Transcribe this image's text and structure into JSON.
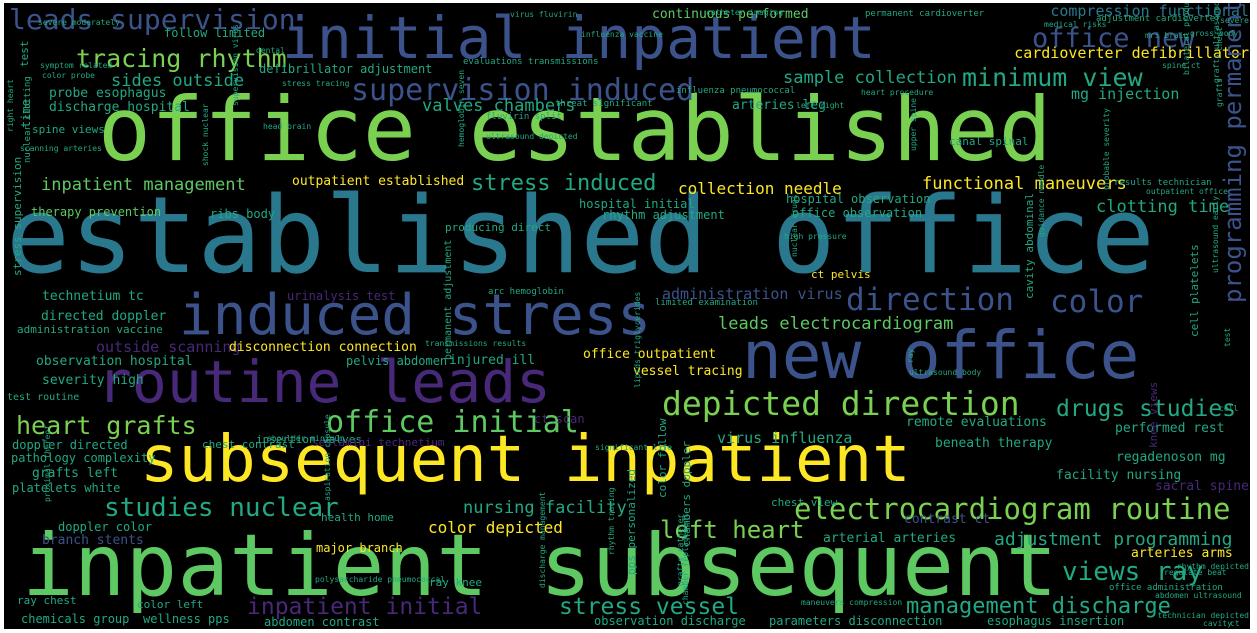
{
  "palette": {
    "background": "#000000",
    "yellow": "#fde725",
    "green": "#7ad151",
    "teal": "#22a884",
    "blue": "#3b528b",
    "purple": "#482878",
    "cyan": "#2a788e",
    "light_green": "#5ec962"
  },
  "words": [
    {
      "text": "office established",
      "color": "green"
    },
    {
      "text": "established office",
      "color": "cyan"
    },
    {
      "text": "inpatient subsequent",
      "color": "light_green"
    },
    {
      "text": "subsequent inpatient",
      "color": "yellow"
    },
    {
      "text": "initial inpatient",
      "color": "blue"
    },
    {
      "text": "new office",
      "color": "blue"
    },
    {
      "text": "routine leads",
      "color": "purple"
    },
    {
      "text": "induced stress",
      "color": "blue"
    },
    {
      "text": "supervision induced",
      "color": "blue"
    },
    {
      "text": "depicted direction",
      "color": "green"
    },
    {
      "text": "electrocardiogram routine",
      "color": "green"
    },
    {
      "text": "leads supervision",
      "color": "blue"
    },
    {
      "text": "direction",
      "color": "blue"
    },
    {
      "text": "color",
      "color": "blue"
    },
    {
      "text": "office initial",
      "color": "light_green"
    },
    {
      "text": "heart grafts",
      "color": "green"
    },
    {
      "text": "office new",
      "color": "blue"
    },
    {
      "text": "tracing rhythm",
      "color": "green"
    },
    {
      "text": "minimum view",
      "color": "teal"
    },
    {
      "text": "drugs studies",
      "color": "teal"
    },
    {
      "text": "views ray",
      "color": "teal"
    },
    {
      "text": "stress induced",
      "color": "teal"
    },
    {
      "text": "studies nuclear",
      "color": "teal"
    },
    {
      "text": "left heart",
      "color": "green"
    },
    {
      "text": "stress vessel",
      "color": "teal"
    },
    {
      "text": "management discharge",
      "color": "teal"
    },
    {
      "text": "inpatient initial",
      "color": "purple"
    },
    {
      "text": "adjustment programming",
      "color": "teal"
    },
    {
      "text": "leads electrocardiogram",
      "color": "light_green"
    },
    {
      "text": "inpatient management",
      "color": "light_green"
    },
    {
      "text": "functional maneuvers",
      "color": "yellow"
    },
    {
      "text": "collection needle",
      "color": "yellow"
    },
    {
      "text": "clotting time",
      "color": "teal"
    },
    {
      "text": "sample collection",
      "color": "teal"
    },
    {
      "text": "valves chambers",
      "color": "teal"
    },
    {
      "text": "sides outside",
      "color": "teal"
    },
    {
      "text": "nursing facility",
      "color": "teal"
    },
    {
      "text": "color depicted",
      "color": "yellow"
    },
    {
      "text": "virus influenza",
      "color": "teal"
    },
    {
      "text": "compression functional",
      "color": "cyan"
    },
    {
      "text": "cardioverter defibrillator",
      "color": "yellow"
    },
    {
      "text": "mg injection",
      "color": "teal"
    },
    {
      "text": "continuous performed",
      "color": "light_green"
    },
    {
      "text": "defibrillator adjustment",
      "color": "teal"
    },
    {
      "text": "follow limited",
      "color": "teal"
    },
    {
      "text": "probe esophagus",
      "color": "teal"
    },
    {
      "text": "discharge hospital",
      "color": "teal"
    },
    {
      "text": "arteries leg",
      "color": "teal"
    },
    {
      "text": "outside scanning",
      "color": "purple"
    },
    {
      "text": "administration virus",
      "color": "blue"
    },
    {
      "text": "outpatient established",
      "color": "yellow"
    },
    {
      "text": "technetium tc",
      "color": "teal"
    },
    {
      "text": "directed doppler",
      "color": "teal"
    },
    {
      "text": "administration vaccine",
      "color": "teal"
    },
    {
      "text": "disconnection connection",
      "color": "yellow"
    },
    {
      "text": "observation hospital",
      "color": "teal"
    },
    {
      "text": "severity high",
      "color": "teal"
    },
    {
      "text": "office outpatient",
      "color": "yellow"
    },
    {
      "text": "vessel tracing",
      "color": "yellow"
    },
    {
      "text": "injured ill",
      "color": "teal"
    },
    {
      "text": "pelvis abdomen",
      "color": "teal"
    },
    {
      "text": "remote evaluations",
      "color": "teal"
    },
    {
      "text": "performed rest",
      "color": "teal"
    },
    {
      "text": "beneath therapy",
      "color": "teal"
    },
    {
      "text": "regadenoson mg",
      "color": "teal"
    },
    {
      "text": "facility nursing",
      "color": "teal"
    },
    {
      "text": "sacral spine",
      "color": "purple"
    },
    {
      "text": "arteries arms",
      "color": "yellow"
    },
    {
      "text": "arterial arteries",
      "color": "teal"
    },
    {
      "text": "contrast ct",
      "color": "blue"
    },
    {
      "text": "chest view",
      "color": "teal"
    },
    {
      "text": "major branch",
      "color": "yellow"
    },
    {
      "text": "health home",
      "color": "teal"
    },
    {
      "text": "doppler color",
      "color": "teal"
    },
    {
      "text": "branch stents",
      "color": "blue"
    },
    {
      "text": "platelets white",
      "color": "teal"
    },
    {
      "text": "grafts left",
      "color": "teal"
    },
    {
      "text": "pathology complexity",
      "color": "teal"
    },
    {
      "text": "doppler directed",
      "color": "teal"
    },
    {
      "text": "test routine",
      "color": "teal"
    },
    {
      "text": "ray chest",
      "color": "teal"
    },
    {
      "text": "chemicals group",
      "color": "teal"
    },
    {
      "text": "wellness pps",
      "color": "teal"
    },
    {
      "text": "abdomen contrast",
      "color": "teal"
    },
    {
      "text": "observation discharge",
      "color": "teal"
    },
    {
      "text": "parameters disconnection",
      "color": "teal"
    },
    {
      "text": "esophagus insertion",
      "color": "teal"
    },
    {
      "text": "color left",
      "color": "teal"
    },
    {
      "text": "ray knee",
      "color": "teal"
    },
    {
      "text": "therapy prevention",
      "color": "light_green"
    },
    {
      "text": "ribs body",
      "color": "teal"
    },
    {
      "text": "hospital initial",
      "color": "teal"
    },
    {
      "text": "rhythm adjustment",
      "color": "teal"
    },
    {
      "text": "hospital observation",
      "color": "teal"
    },
    {
      "text": "office observation",
      "color": "teal"
    },
    {
      "text": "insertion valves",
      "color": "teal"
    },
    {
      "text": "chest contrast",
      "color": "teal"
    },
    {
      "text": "sestamibi technetium",
      "color": "purple"
    },
    {
      "text": "urinalysis test",
      "color": "purple"
    },
    {
      "text": "ct scan",
      "color": "purple"
    },
    {
      "text": "programming permanent",
      "color": "blue"
    },
    {
      "text": "stress supervision",
      "color": "teal"
    },
    {
      "text": "cell platelets",
      "color": "teal"
    },
    {
      "text": "cavity abdominal",
      "color": "teal"
    },
    {
      "text": "permanent adjustment",
      "color": "teal"
    },
    {
      "text": "pps personalized",
      "color": "teal"
    },
    {
      "text": "color follow",
      "color": "teal"
    },
    {
      "text": "chambers doppler",
      "color": "teal"
    },
    {
      "text": "time",
      "color": "teal"
    },
    {
      "text": "test",
      "color": "teal"
    },
    {
      "text": "knee views",
      "color": "purple"
    },
    {
      "text": "spine views",
      "color": "teal"
    },
    {
      "text": "producing direct",
      "color": "teal"
    },
    {
      "text": "canal spinal",
      "color": "teal"
    },
    {
      "text": "ct pelvis",
      "color": "yellow"
    },
    {
      "text": "high pressure",
      "color": "teal"
    },
    {
      "text": "permanent cardioverter",
      "color": "teal"
    },
    {
      "text": "adjustment cardioverter",
      "color": "teal"
    },
    {
      "text": "evaluations transmissions",
      "color": "teal"
    },
    {
      "text": "influenza pneumococcal",
      "color": "teal"
    },
    {
      "text": "threat significant",
      "color": "teal"
    },
    {
      "text": "fluvirin split",
      "color": "teal"
    },
    {
      "text": "virus fluvirin",
      "color": "teal"
    },
    {
      "text": "nuclear clotting",
      "color": "teal"
    },
    {
      "text": "arc hemoglobin",
      "color": "teal"
    },
    {
      "text": "limited examination",
      "color": "teal"
    },
    {
      "text": "results technician",
      "color": "teal"
    },
    {
      "text": "office administration",
      "color": "teal"
    },
    {
      "text": "abdomen ultrasound",
      "color": "teal"
    },
    {
      "text": "regulate beat",
      "color": "teal"
    },
    {
      "text": "maneuvers compression",
      "color": "teal"
    },
    {
      "text": "significant life",
      "color": "teal"
    },
    {
      "text": "severe moderately",
      "color": "teal"
    },
    {
      "text": "color probe",
      "color": "teal"
    },
    {
      "text": "symptom related",
      "color": "teal"
    },
    {
      "text": "right heart",
      "color": "teal"
    },
    {
      "text": "scanning arteries",
      "color": "teal"
    },
    {
      "text": "stress tracing",
      "color": "teal"
    },
    {
      "text": "left right",
      "color": "teal"
    },
    {
      "text": "nuclear drugs",
      "color": "teal"
    },
    {
      "text": "spine ct",
      "color": "teal"
    },
    {
      "text": "chest",
      "color": "teal"
    },
    {
      "text": "transmissions results",
      "color": "teal"
    },
    {
      "text": "ultrasound depicted",
      "color": "teal"
    },
    {
      "text": "outpatient office",
      "color": "teal"
    },
    {
      "text": "hemoglobin seven",
      "color": "teal"
    },
    {
      "text": "guidance needle",
      "color": "teal"
    },
    {
      "text": "lipids triglycerides",
      "color": "teal"
    },
    {
      "text": "rhythm tracing",
      "color": "teal"
    },
    {
      "text": "grafts catheter",
      "color": "teal"
    },
    {
      "text": "chamber replacement",
      "color": "teal"
    },
    {
      "text": "discharge management",
      "color": "teal"
    },
    {
      "text": "polysaccharide pneumococcal",
      "color": "teal"
    },
    {
      "text": "aspiration capsule",
      "color": "teal"
    },
    {
      "text": "shoulder minimum",
      "color": "teal"
    },
    {
      "text": "catheter imaging",
      "color": "teal"
    },
    {
      "text": "bilateral producing",
      "color": "teal"
    },
    {
      "text": "rhythm depicted",
      "color": "teal"
    },
    {
      "text": "ultrasound body",
      "color": "teal"
    },
    {
      "text": "heart procedure",
      "color": "teal"
    },
    {
      "text": "influenza vaccine",
      "color": "teal"
    },
    {
      "text": "head brain",
      "color": "teal"
    },
    {
      "text": "shock nuclear",
      "color": "teal"
    },
    {
      "text": "supervision virus",
      "color": "teal"
    },
    {
      "text": "mri brain",
      "color": "teal"
    },
    {
      "text": "medical risks",
      "color": "teal"
    },
    {
      "text": "upper spine",
      "color": "teal"
    },
    {
      "text": "probable severity",
      "color": "teal"
    },
    {
      "text": "grafts ultrasound",
      "color": "teal"
    },
    {
      "text": "ultrasound early",
      "color": "teal"
    },
    {
      "text": "gross body",
      "color": "teal"
    },
    {
      "text": "dental",
      "color": "teal"
    },
    {
      "text": "severe",
      "color": "teal"
    },
    {
      "text": "grafts",
      "color": "teal"
    },
    {
      "text": "cell",
      "color": "teal"
    },
    {
      "text": "test",
      "color": "teal"
    },
    {
      "text": "ray",
      "color": "teal"
    },
    {
      "text": "proximal thereof",
      "color": "teal"
    },
    {
      "text": "technician depicted",
      "color": "teal"
    },
    {
      "text": "ct",
      "color": "teal"
    },
    {
      "text": "cavity",
      "color": "teal"
    },
    {
      "text": "ultrasound",
      "color": "teal"
    }
  ]
}
